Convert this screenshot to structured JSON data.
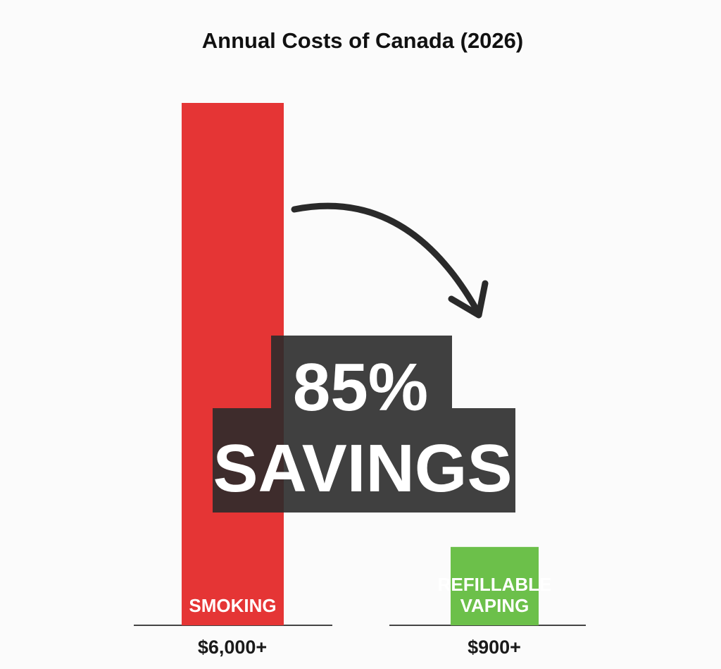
{
  "chart_data": {
    "type": "bar",
    "title": "Annual Costs of Canada (2026)",
    "categories": [
      "SMOKING",
      "REFILLABLE VAPING"
    ],
    "category_lines": [
      [
        "SMOKING"
      ],
      [
        "REFILLABLE",
        "VAPING"
      ]
    ],
    "values": [
      6000,
      900
    ],
    "value_labels": [
      "$6,000+",
      "$900+"
    ],
    "xlabel": "",
    "ylabel": "",
    "grid": false,
    "colors": [
      "#e53535",
      "#6cc04a"
    ],
    "callout": {
      "line1": "85%",
      "line2": "SAVINGS",
      "box_color": "#2b2b2b",
      "arrow": "curved-down-right"
    }
  }
}
